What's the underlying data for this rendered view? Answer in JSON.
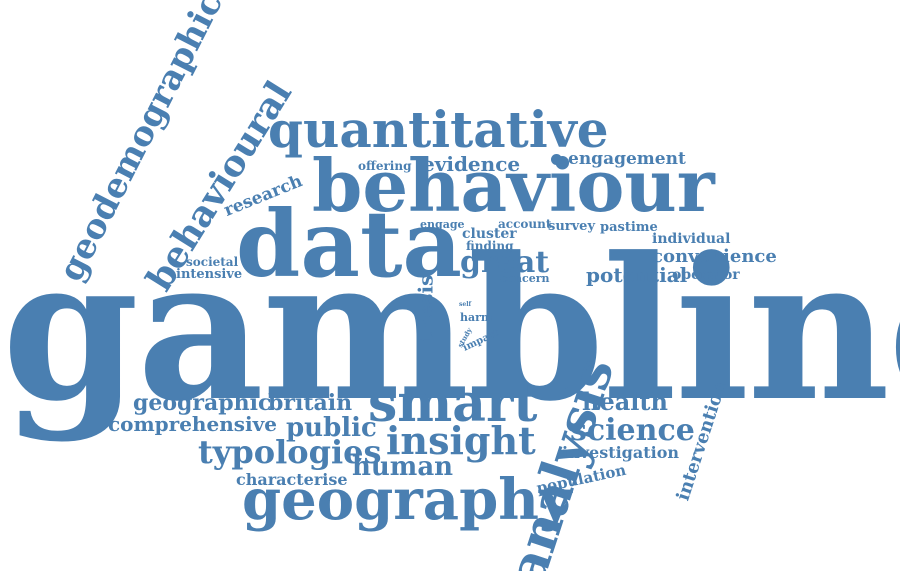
{
  "cloud": {
    "color": "#4a7fb1",
    "words": [
      {
        "key": "gambling",
        "text": "gambling"
      },
      {
        "key": "behaviour",
        "text": "behaviour"
      },
      {
        "key": "quantitative",
        "text": "quantitative"
      },
      {
        "key": "data",
        "text": "data"
      },
      {
        "key": "smart",
        "text": "smart"
      },
      {
        "key": "geography",
        "text": "geography"
      },
      {
        "key": "analysis",
        "text": "analysis"
      },
      {
        "key": "insight",
        "text": "insight"
      },
      {
        "key": "geodemographic",
        "text": "geodemographic"
      },
      {
        "key": "behavioural",
        "text": "behavioural"
      },
      {
        "key": "typologies",
        "text": "typologies"
      },
      {
        "key": "science",
        "text": "science"
      },
      {
        "key": "human",
        "text": "human"
      },
      {
        "key": "public",
        "text": "public"
      },
      {
        "key": "geographic",
        "text": "geographic"
      },
      {
        "key": "britain",
        "text": "britain"
      },
      {
        "key": "comprehensive",
        "text": "comprehensive"
      },
      {
        "key": "health",
        "text": "health"
      },
      {
        "key": "great",
        "text": "great"
      },
      {
        "key": "evidence",
        "text": "evidence"
      },
      {
        "key": "engagement",
        "text": "engagement"
      },
      {
        "key": "convenience",
        "text": "convenience"
      },
      {
        "key": "potential",
        "text": "potential"
      },
      {
        "key": "operator",
        "text": "operator"
      },
      {
        "key": "individual",
        "text": "individual"
      },
      {
        "key": "investigation",
        "text": "investigation"
      },
      {
        "key": "characterise",
        "text": "characterise"
      },
      {
        "key": "intervention",
        "text": "intervention"
      },
      {
        "key": "population",
        "text": "population"
      },
      {
        "key": "research",
        "text": "research"
      },
      {
        "key": "thesis",
        "text": "thesis"
      },
      {
        "key": "societal",
        "text": "societal"
      },
      {
        "key": "intensive",
        "text": "intensive"
      },
      {
        "key": "offering",
        "text": "offering"
      },
      {
        "key": "engage",
        "text": "engage"
      },
      {
        "key": "account",
        "text": "account"
      },
      {
        "key": "cluster",
        "text": "cluster"
      },
      {
        "key": "finding",
        "text": "finding"
      },
      {
        "key": "survey",
        "text": "survey"
      },
      {
        "key": "pastime",
        "text": "pastime"
      },
      {
        "key": "concern",
        "text": "concern"
      },
      {
        "key": "harm",
        "text": "harm"
      },
      {
        "key": "self",
        "text": "self"
      },
      {
        "key": "study",
        "text": "study"
      },
      {
        "key": "impact",
        "text": "impact"
      }
    ]
  }
}
